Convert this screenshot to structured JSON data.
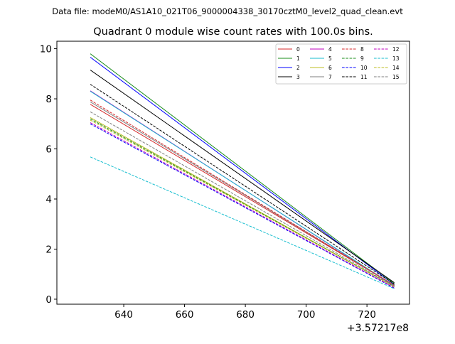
{
  "figure": {
    "suptitle": "Data file: modeM0/AS1A10_021T06_9000004338_30170cztM0_level2_quad_clean.evt"
  },
  "chart_data": {
    "type": "line",
    "title": "Quadrant 0 module wise count rates with 100.0s bins.",
    "xlabel": "",
    "ylabel": "",
    "x_offset_label": "+3.57217e8",
    "x_offset": 357217000,
    "xlim": [
      618,
      734
    ],
    "ylim": [
      -0.2,
      10.3
    ],
    "xticks": [
      640,
      660,
      680,
      700,
      720
    ],
    "yticks": [
      0,
      2,
      4,
      6,
      8,
      10
    ],
    "x": [
      629,
      729
    ],
    "legend_position": "upper right",
    "legend_columns": 4,
    "series": [
      {
        "name": "0",
        "color": "#d62728",
        "style": "solid",
        "values": [
          7.78,
          0.55
        ]
      },
      {
        "name": "1",
        "color": "#1a8c1a",
        "style": "solid",
        "values": [
          9.8,
          0.62
        ]
      },
      {
        "name": "2",
        "color": "#0000ff",
        "style": "solid",
        "values": [
          9.66,
          0.58
        ]
      },
      {
        "name": "3",
        "color": "#000000",
        "style": "solid",
        "values": [
          9.15,
          0.66
        ]
      },
      {
        "name": "4",
        "color": "#bf00bf",
        "style": "solid",
        "values": [
          8.32,
          0.52
        ]
      },
      {
        "name": "5",
        "color": "#17becf",
        "style": "solid",
        "values": [
          8.3,
          0.54
        ]
      },
      {
        "name": "6",
        "color": "#bcbd22",
        "style": "solid",
        "values": [
          7.25,
          0.5
        ]
      },
      {
        "name": "7",
        "color": "#7f7f7f",
        "style": "solid",
        "values": [
          7.88,
          0.56
        ]
      },
      {
        "name": "8",
        "color": "#d62728",
        "style": "dashed",
        "values": [
          7.95,
          0.55
        ]
      },
      {
        "name": "9",
        "color": "#1a8c1a",
        "style": "dashed",
        "values": [
          7.2,
          0.5
        ]
      },
      {
        "name": "10",
        "color": "#0000ff",
        "style": "dashed",
        "values": [
          7.0,
          0.44
        ]
      },
      {
        "name": "11",
        "color": "#000000",
        "style": "dashed",
        "values": [
          8.58,
          0.6
        ]
      },
      {
        "name": "12",
        "color": "#bf00bf",
        "style": "dashed",
        "values": [
          7.05,
          0.46
        ]
      },
      {
        "name": "13",
        "color": "#17becf",
        "style": "dashed",
        "values": [
          5.68,
          0.42
        ]
      },
      {
        "name": "14",
        "color": "#bcbd22",
        "style": "dashed",
        "values": [
          7.15,
          0.5
        ]
      },
      {
        "name": "15",
        "color": "#7f7f7f",
        "style": "dashed",
        "values": [
          7.48,
          0.52
        ]
      }
    ]
  }
}
